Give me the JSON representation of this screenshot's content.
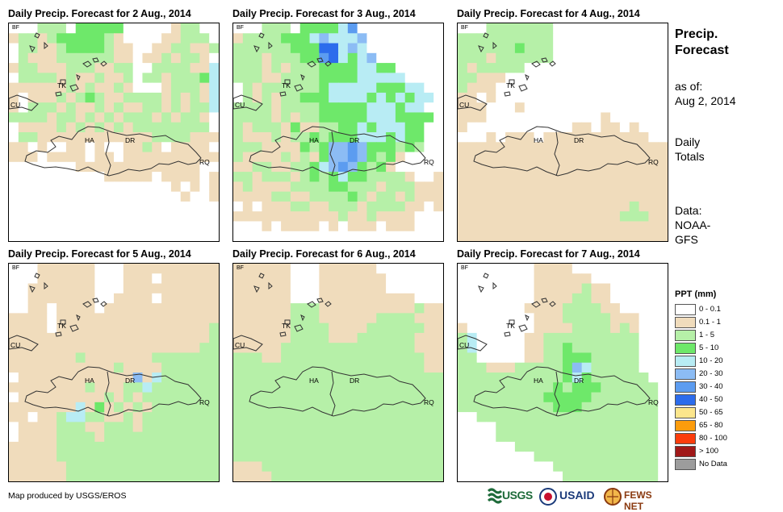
{
  "panels": [
    {
      "title": "Daily Precip. Forecast for 2 Aug., 2014",
      "grid": [
        "0002220333330000012200",
        "1221233333210000112220",
        "0221123333211001122112",
        "0211122222211011212210",
        "1221112221122002222114",
        "0222212112112022122234",
        "1111112121121000122214",
        "1011121232112222121214",
        "1022212112121122121224",
        "2222122121212221212210",
        "0111121212121222222220",
        "0221111111111112222111",
        "1101001101001121011110",
        "1110111101101111111111",
        "0000000111111111111100",
        "0000000000111110111101",
        "0000000000000000010101",
        "0000000000000000001001",
        "0000000000000000000000",
        "0000000000000000000000",
        "0000000000000000000000",
        "0000000000000000000000"
      ]
    },
    {
      "title": "Daily Precip. Forecast for 3 Aug., 2014",
      "grid": [
        "0002220333346000000000",
        "1222233345444500000000",
        "2222223337745400000000",
        "2221222336743450000000",
        "2221212223333443300000",
        "2221122223333444440000",
        "0212222223444443334400",
        "0212122333444434343440",
        "2222122223333344434400",
        "2222121223333344433330",
        "2122213112233434443300",
        "2111212232333444343300",
        "2221111323556533323200",
        "2111121213556532310000",
        "1122112234565323100000",
        "2212221232343322221001",
        "1211112222332221222111",
        "1111221122223212212111",
        "0101112211222122221101",
        "1111111111121121111000",
        "0001011110101110111000",
        "0000000000000000000000"
      ]
    },
    {
      "title": "Daily Precip. Forecast for 4 Aug., 2014",
      "grid": [
        "0002222222000000000000",
        "2222222222000000000000",
        "2222223222000000000000",
        "2221222222000000000000",
        "2122222000000000000000",
        "2211100000000000000000",
        "2111000000000000000000",
        "1101000000000000000000",
        "1110001000000000000000",
        "1110000000000001000000",
        "1000000000001101101000",
        "0001011101111111111100",
        "1111111111111111111111",
        "1111111111111111111111",
        "1111111111111111111111",
        "1111111111111111111111",
        "1111111111111111111111",
        "1111111111111111111111",
        "1111111111111111112111",
        "1111111111111111122211",
        "1111111111111111111111",
        "1111111111111111111111"
      ]
    },
    {
      "title": "Daily Precip. Forecast for 5 Aug., 2014",
      "grid": [
        "0001111110001111111111",
        "0001111110001110111111",
        "0011111110001111111111",
        "0011111110011110111111",
        "0011011110111111111111",
        "1111011111111111111111",
        "1111011111111111111112",
        "1111111111111111111112",
        "1111111111111111111122",
        "1111111211111112222222",
        "1111111111121111222222",
        "0111111111111514222222",
        "1111111121112242222222",
        "0111111111212122222222",
        "1111111413121212222222",
        "1101124422112122222222",
        "0111122211222122222222",
        "0111122221222222222222",
        "1111122222222222222222",
        "1111122222222222222222",
        "1111112222222222222222",
        "1111112222222222222222"
      ]
    },
    {
      "title": "Daily Precip. Forecast for 6 Aug., 2014",
      "grid": [
        "1111110001111110000000",
        "1111110001111111000000",
        "1111110001111111000000",
        "1111110001111111111000",
        "1111112221111111111211",
        "1111112221111112222111",
        "1111112222111122222211",
        "1111112222111222222111",
        "1111122222222222222111",
        "2221122222222222222211",
        "2222222222222222222211",
        "2222222222222222222222",
        "2222222222222222222222",
        "2222222222222222222222",
        "2222222222222222222222",
        "2222222222222222222222",
        "2222222222222222222222",
        "2222222222222222222222",
        "2222222222222222222222",
        "2222222222222222222222",
        "1112222222222222222222",
        "1111222222222222222222"
      ]
    },
    {
      "title": "Daily Precip. Forecast for 7 Aug., 2014",
      "grid": [
        "0000000011110000000000",
        "0000000011111100000000",
        "0000000011111211000000",
        "0000000011112211000000",
        "0000000111122221100000",
        "0000000011122222111000",
        "1000000011112222121000",
        "2400000112222222222000",
        "2400000112232222222000",
        "2200000112233322222000",
        "2221112222235422222000",
        "2222222222234322222200",
        "2222222222323332222220",
        "2222222223333322222220",
        "2222222222333222222220",
        "0022222222222222222220",
        "0000222222222222222220",
        "0000222222222222222220",
        "0000002222222222222220",
        "0000000022222222222220",
        "0000000000222222222220",
        "0000000000022222222220"
      ]
    }
  ],
  "map_labels": {
    "bf": "BF",
    "tk": "TK",
    "cu": "CU",
    "ha": "HA",
    "dr": "DR",
    "rq": "RQ"
  },
  "side": {
    "title_line1": "Precip.",
    "title_line2": "Forecast",
    "asof_line1": "as of:",
    "asof_line2": "Aug 2, 2014",
    "daily_line1": "Daily",
    "daily_line2": "Totals",
    "data_line1": "Data:",
    "data_line2": "NOAA-",
    "data_line3": "GFS"
  },
  "legend": {
    "title": "PPT (mm)",
    "classes": [
      {
        "label": "0 - 0.1",
        "color": "#ffffff"
      },
      {
        "label": "0.1 - 1",
        "color": "#f0dcbc"
      },
      {
        "label": "1 - 5",
        "color": "#b6f0a8"
      },
      {
        "label": "5 - 10",
        "color": "#6ee86a"
      },
      {
        "label": "10 - 20",
        "color": "#b8ecf4"
      },
      {
        "label": "20 - 30",
        "color": "#8cbcf4"
      },
      {
        "label": "30 - 40",
        "color": "#5c9cf0"
      },
      {
        "label": "40 - 50",
        "color": "#2c6cec"
      },
      {
        "label": "50 - 65",
        "color": "#fce68c"
      },
      {
        "label": "65 - 80",
        "color": "#fc9c0c"
      },
      {
        "label": "80 - 100",
        "color": "#fc3c0c"
      },
      {
        "label": "> 100",
        "color": "#a01818"
      },
      {
        "label": "No Data",
        "color": "#9c9c9c"
      }
    ]
  },
  "credit": "Map produced by USGS/EROS",
  "logos": {
    "usgs": "USGS",
    "usaid": "USAID",
    "fews": "FEWS NET"
  }
}
